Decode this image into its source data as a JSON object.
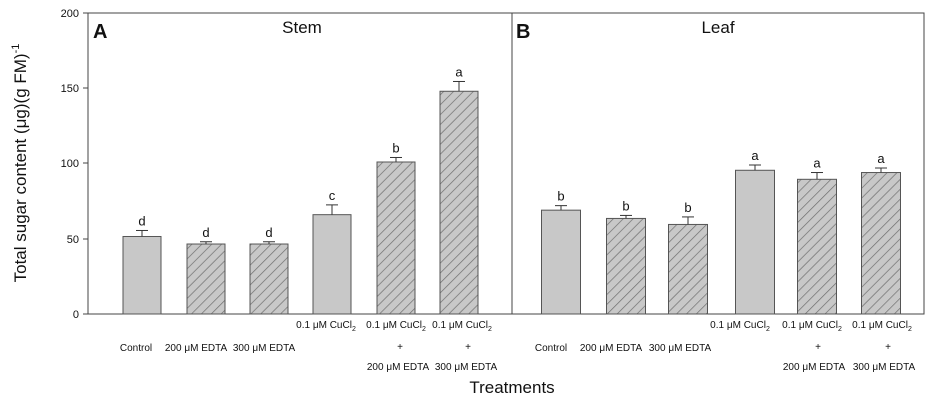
{
  "figure": {
    "ylabel": "Total sugar content (μg)(g FM)",
    "ylabel_sup": "-1",
    "xlabel": "Treatments",
    "yticks": [
      "0",
      "50",
      "100",
      "150",
      "200"
    ],
    "colors": {
      "bar_fill": "#c8c8c8",
      "bar_stroke": "#555555",
      "hatch": "#6f6f6f",
      "axis": "#444444"
    }
  },
  "chart_data": [
    {
      "type": "bar",
      "panel_letter": "A",
      "title": "Stem",
      "ylim": [
        0,
        200
      ],
      "categories": [
        "Control",
        "200 μM EDTA",
        "300 μM EDTA",
        "0.1 μM CuCl2",
        "0.1 μM CuCl2 + 200 μM EDTA",
        "0.1 μM CuCl2 + 300 μM EDTA"
      ],
      "values": [
        51.5,
        46.5,
        46.5,
        66,
        101,
        148
      ],
      "errors": [
        4,
        1.5,
        1.5,
        6.5,
        3,
        6.5
      ],
      "letters": [
        "d",
        "d",
        "d",
        "c",
        "b",
        "a"
      ],
      "hatched": [
        false,
        true,
        true,
        false,
        true,
        true
      ]
    },
    {
      "type": "bar",
      "panel_letter": "B",
      "title": "Leaf",
      "ylim": [
        0,
        200
      ],
      "categories": [
        "Control",
        "200 μM EDTA",
        "300 μM EDTA",
        "0.1 μM CuCl2",
        "0.1 μM CuCl2 + 200 μM EDTA",
        "0.1 μM CuCl2 + 300 μM EDTA"
      ],
      "values": [
        69,
        63.5,
        59.5,
        95.5,
        89.5,
        94
      ],
      "errors": [
        3,
        2,
        5,
        3.5,
        4.5,
        3
      ],
      "letters": [
        "b",
        "b",
        "b",
        "a",
        "a",
        "a"
      ],
      "hatched": [
        false,
        true,
        true,
        false,
        true,
        true
      ]
    }
  ],
  "xlabels": {
    "row1": [
      "Control",
      "200 μM EDTA",
      "300 μM EDTA"
    ],
    "cu_main": "0.1 μM CuCl",
    "cu_sub": "2",
    "plus": "+",
    "row3": [
      "200 μM EDTA",
      "300 μM EDTA"
    ]
  }
}
